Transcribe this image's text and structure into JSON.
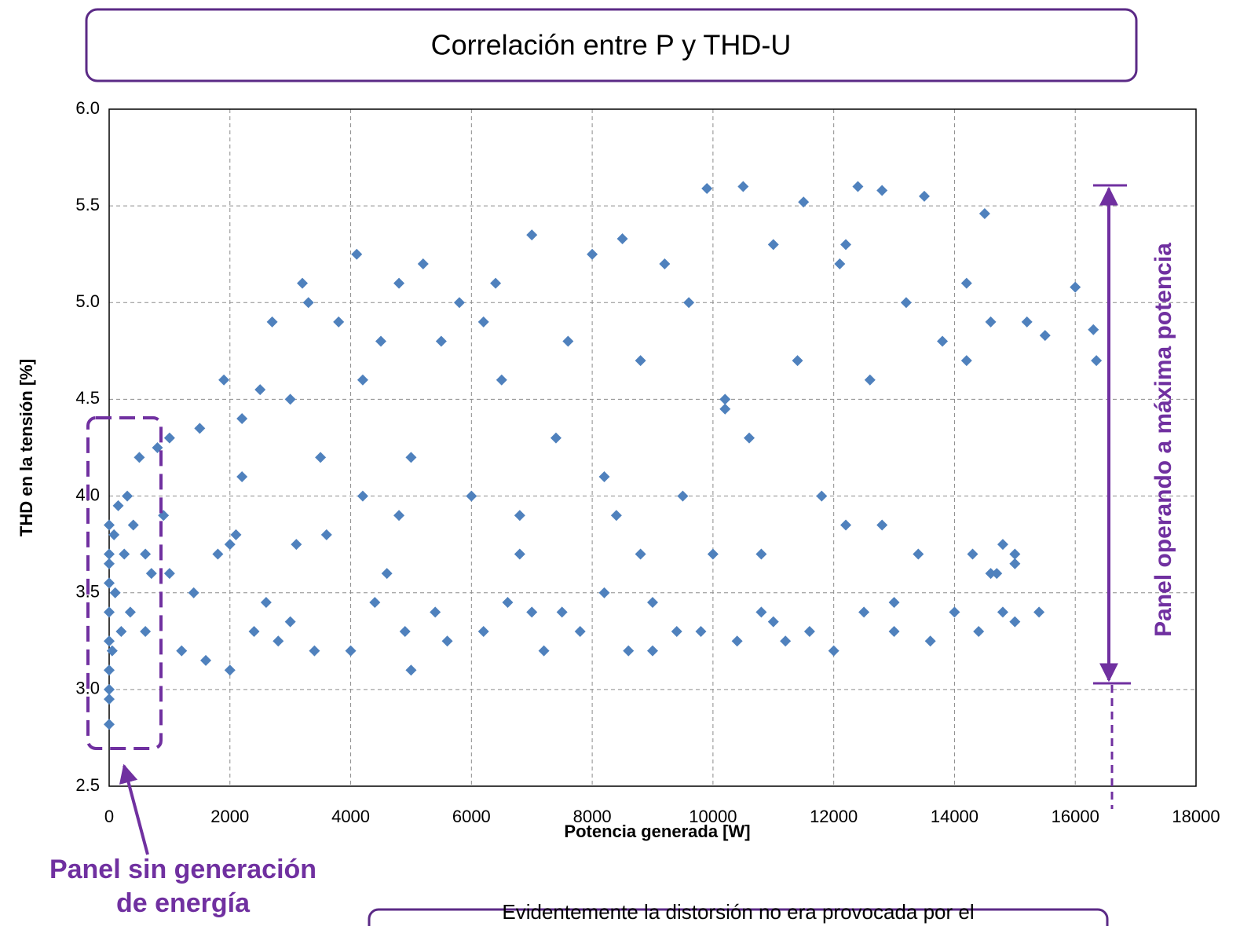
{
  "chart_data": {
    "type": "scatter",
    "title": "Correlación entre P y THD-U",
    "x_label": "Potencia generada [W]",
    "y_label": "THD en la tensión  [%]",
    "color": "#4f81bd",
    "grid": true,
    "xlim": [
      0,
      18000
    ],
    "xticks": [
      0,
      2000,
      4000,
      6000,
      8000,
      10000,
      12000,
      14000,
      16000,
      18000
    ],
    "ylim": [
      2.5,
      6.0
    ],
    "yticks": [
      2.5,
      {
        "value": 3.0,
        "label": "3.0"
      },
      3.5,
      {
        "value": 4.0,
        "label": "4.0"
      },
      4.5,
      {
        "value": 5.0,
        "label": "5.0"
      },
      5.5,
      {
        "value": 6.0,
        "label": "6.0"
      }
    ],
    "annotations": [
      "Panel sin generación",
      "de energía",
      "Panel operando a máxima potencia",
      "Evidentemente la distorsión no era provocada por el"
    ],
    "x": [
      0,
      0,
      0,
      0,
      0,
      0,
      0,
      0,
      0,
      0,
      50,
      80,
      100,
      150,
      200,
      250,
      300,
      350,
      400,
      500,
      600,
      700,
      800,
      900,
      1000,
      1200,
      1400,
      1500,
      1600,
      1800,
      1900,
      2000,
      2100,
      2200,
      2400,
      2500,
      2600,
      2700,
      2800,
      3000,
      3100,
      3200,
      3400,
      3500,
      3600,
      3800,
      4000,
      4100,
      4200,
      4400,
      4500,
      4600,
      4800,
      4900,
      5000,
      5200,
      5400,
      5500,
      5600,
      5800,
      6000,
      6200,
      6400,
      6500,
      6600,
      6800,
      7000,
      7200,
      7400,
      7500,
      7600,
      7800,
      8000,
      8200,
      8400,
      8500,
      8600,
      8800,
      9000,
      9200,
      9400,
      9500,
      9600,
      9800,
      9900,
      10000,
      10200,
      10400,
      10500,
      10600,
      10800,
      11000,
      11200,
      11400,
      11500,
      11600,
      11800,
      12000,
      12100,
      12200,
      12400,
      12500,
      12600,
      12800,
      13000,
      13200,
      13400,
      13500,
      13600,
      13800,
      14000,
      14200,
      14300,
      14400,
      14500,
      14600,
      14700,
      14800,
      15000,
      15200,
      15400,
      15500,
      16000,
      16300,
      16350,
      600,
      1000,
      2000,
      3000,
      5000,
      7000,
      9000,
      11000,
      13000,
      15000,
      2200,
      4200,
      6200,
      8200,
      10200,
      12200,
      14200,
      3300,
      4800,
      6800,
      8800,
      10800,
      12800,
      14800,
      15000,
      14600
    ],
    "values": [
      2.82,
      2.95,
      3.1,
      3.25,
      3.4,
      3.55,
      3.7,
      3.85,
      3.0,
      3.65,
      3.2,
      3.8,
      3.5,
      3.95,
      3.3,
      3.7,
      4.0,
      3.4,
      3.85,
      4.2,
      3.3,
      3.6,
      4.25,
      3.9,
      4.3,
      3.2,
      3.5,
      4.35,
      3.15,
      3.7,
      4.6,
      3.1,
      3.8,
      4.4,
      3.3,
      4.55,
      3.45,
      4.9,
      3.25,
      4.5,
      3.75,
      5.1,
      3.2,
      4.2,
      3.8,
      4.9,
      3.2,
      5.25,
      4.0,
      3.45,
      4.8,
      3.6,
      5.1,
      3.3,
      4.2,
      5.2,
      3.4,
      4.8,
      3.25,
      5.0,
      4.0,
      3.3,
      5.1,
      4.6,
      3.45,
      3.9,
      5.35,
      3.2,
      4.3,
      3.4,
      4.8,
      3.3,
      5.25,
      3.5,
      3.9,
      5.33,
      3.2,
      4.7,
      3.45,
      5.2,
      3.3,
      4.0,
      5.0,
      3.3,
      5.59,
      3.7,
      4.5,
      3.25,
      5.6,
      4.3,
      3.4,
      5.3,
      3.25,
      4.7,
      5.52,
      3.3,
      4.0,
      3.2,
      5.2,
      3.85,
      5.6,
      3.4,
      4.6,
      5.58,
      3.3,
      5.0,
      3.7,
      5.55,
      3.25,
      4.8,
      3.4,
      5.1,
      3.7,
      3.3,
      5.46,
      4.9,
      3.6,
      3.4,
      3.7,
      4.9,
      3.4,
      4.83,
      5.08,
      4.86,
      4.7,
      3.7,
      3.6,
      3.75,
      3.35,
      3.1,
      3.4,
      3.2,
      3.35,
      3.45,
      3.35,
      4.1,
      4.6,
      4.9,
      4.1,
      4.45,
      5.3,
      4.7,
      5.0,
      3.9,
      3.7,
      3.7,
      3.7,
      3.85,
      3.75,
      3.65,
      3.6
    ]
  }
}
